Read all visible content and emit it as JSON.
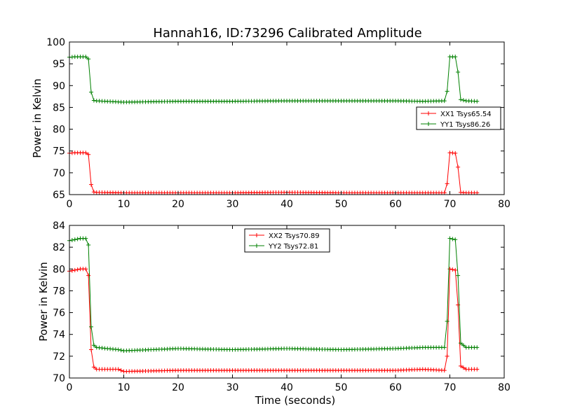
{
  "chart_data": [
    {
      "type": "line",
      "title": "Hannah16, ID:73296 Calibrated Amplitude",
      "xlabel": "",
      "ylabel": "Power in Kelvin",
      "xlim": [
        0,
        80
      ],
      "ylim": [
        65,
        100
      ],
      "xticks": [
        0,
        10,
        20,
        30,
        40,
        50,
        60,
        70,
        80
      ],
      "yticks": [
        65,
        70,
        75,
        80,
        85,
        90,
        95,
        100
      ],
      "legend_position": "center-right",
      "series": [
        {
          "name": "XX1 Tsys65.54",
          "color": "#ff0000",
          "x": [
            0,
            1,
            2,
            3,
            3.5,
            4,
            4.5,
            5,
            10,
            20,
            30,
            40,
            50,
            60,
            65,
            69,
            69.5,
            70,
            71,
            71.5,
            72,
            73,
            75
          ],
          "y": [
            74.5,
            74.6,
            74.6,
            74.6,
            74.2,
            67.3,
            65.6,
            65.5,
            65.4,
            65.4,
            65.4,
            65.5,
            65.4,
            65.4,
            65.4,
            65.4,
            67.5,
            74.6,
            74.5,
            71.3,
            65.5,
            65.4,
            65.4
          ]
        },
        {
          "name": "YY1 Tsys86.26",
          "color": "#008000",
          "x": [
            0,
            1,
            2,
            3,
            3.5,
            4,
            4.5,
            5,
            10,
            20,
            30,
            40,
            50,
            60,
            65,
            69,
            69.5,
            70,
            71,
            71.5,
            72,
            73,
            75
          ],
          "y": [
            96.5,
            96.6,
            96.6,
            96.6,
            96.1,
            88.5,
            86.6,
            86.5,
            86.2,
            86.4,
            86.4,
            86.5,
            86.5,
            86.5,
            86.4,
            86.5,
            88.7,
            96.6,
            96.6,
            93.1,
            86.8,
            86.5,
            86.4
          ]
        }
      ]
    },
    {
      "type": "line",
      "title": "",
      "xlabel": "Time (seconds)",
      "ylabel": "Power in Kelvin",
      "xlim": [
        0,
        80
      ],
      "ylim": [
        70,
        84
      ],
      "xticks": [
        0,
        10,
        20,
        30,
        40,
        50,
        60,
        70,
        80
      ],
      "yticks": [
        70,
        72,
        74,
        76,
        78,
        80,
        82,
        84
      ],
      "legend_position": "upper-center",
      "series": [
        {
          "name": "XX2 Tsys70.89",
          "color": "#ff0000",
          "x": [
            0,
            1,
            2,
            3,
            3.5,
            4,
            4.5,
            5,
            9,
            10,
            20,
            30,
            40,
            50,
            60,
            65,
            69,
            69.5,
            70,
            71,
            71.5,
            72,
            73,
            75
          ],
          "y": [
            79.8,
            79.9,
            80.0,
            80.0,
            79.4,
            72.6,
            71.0,
            70.8,
            70.8,
            70.6,
            70.7,
            70.7,
            70.7,
            70.7,
            70.7,
            70.8,
            70.7,
            72.0,
            80.0,
            79.9,
            76.7,
            71.1,
            70.8,
            70.8
          ]
        },
        {
          "name": "YY2 Tsys72.81",
          "color": "#008000",
          "x": [
            0,
            1,
            2,
            3,
            3.5,
            4,
            4.5,
            5,
            9,
            10,
            20,
            30,
            40,
            50,
            60,
            65,
            69,
            69.5,
            70,
            71,
            71.5,
            72,
            73,
            75
          ],
          "y": [
            82.6,
            82.7,
            82.8,
            82.8,
            82.2,
            74.7,
            73.0,
            72.8,
            72.6,
            72.5,
            72.7,
            72.6,
            72.7,
            72.6,
            72.7,
            72.8,
            72.8,
            75.2,
            82.8,
            82.7,
            79.4,
            73.2,
            72.8,
            72.8
          ]
        }
      ]
    }
  ]
}
